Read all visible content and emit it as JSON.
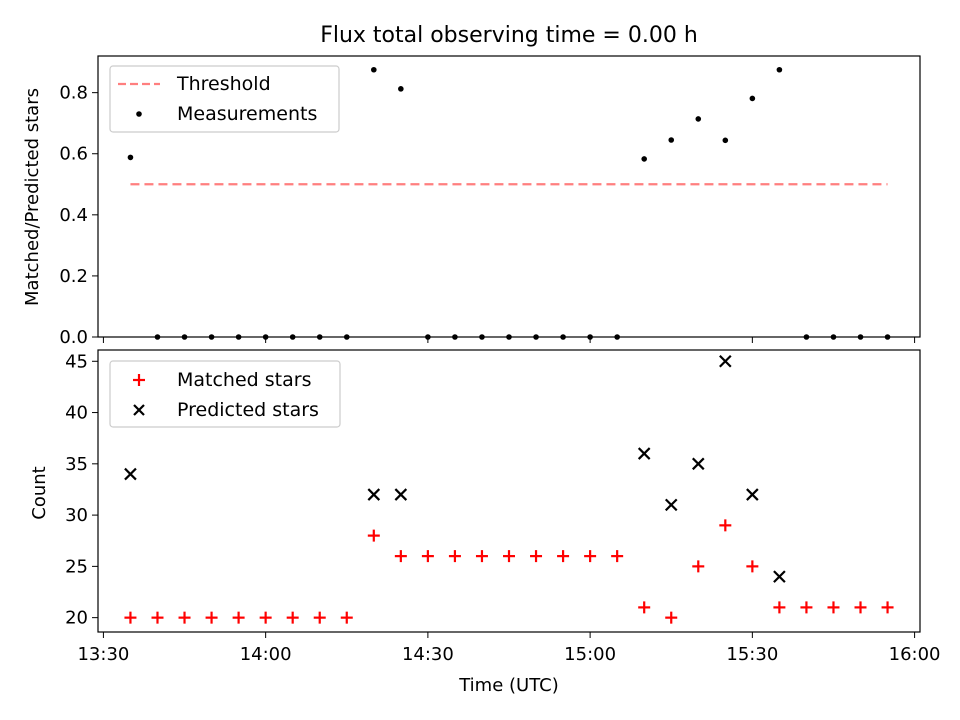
{
  "chart_data": [
    {
      "type": "scatter",
      "title": "Flux total observing time = 0.00 h",
      "xlabel": "",
      "ylabel": "Matched/Predicted stars",
      "xlim": [
        "13:29",
        "16:01"
      ],
      "ylim": [
        0,
        0.92
      ],
      "yticks": [
        0.0,
        0.2,
        0.4,
        0.6,
        0.8
      ],
      "ytick_labels": [
        "0.0",
        "0.2",
        "0.4",
        "0.6",
        "0.8"
      ],
      "xticks": [
        "13:30",
        "14:00",
        "14:30",
        "15:00",
        "15:30",
        "16:00"
      ],
      "xtick_labels": [],
      "grid": false,
      "legend_position": "upper-left",
      "series": [
        {
          "name": "Threshold",
          "kind": "line",
          "style": "dashed",
          "color": "#ff7f7f",
          "x": [
            "13:35",
            "15:55"
          ],
          "y": [
            0.5,
            0.5
          ]
        },
        {
          "name": "Measurements",
          "kind": "points",
          "marker": "dot",
          "color": "#000000",
          "x": [
            "13:35",
            "13:40",
            "13:45",
            "13:50",
            "13:55",
            "14:00",
            "14:05",
            "14:10",
            "14:15",
            "14:20",
            "14:25",
            "14:30",
            "14:35",
            "14:40",
            "14:45",
            "14:50",
            "14:55",
            "15:00",
            "15:05",
            "15:10",
            "15:15",
            "15:20",
            "15:25",
            "15:30",
            "15:35",
            "15:40",
            "15:45",
            "15:50",
            "15:55"
          ],
          "y": [
            0.588,
            0,
            0,
            0,
            0,
            0,
            0,
            0,
            0,
            0.875,
            0.8125,
            0,
            0,
            0,
            0,
            0,
            0,
            0,
            0,
            0.583,
            0.645,
            0.714,
            0.644,
            0.781,
            0.875,
            0,
            0,
            0,
            0
          ]
        }
      ]
    },
    {
      "type": "scatter",
      "title": "",
      "xlabel": "Time (UTC)",
      "ylabel": "Count",
      "xlim": [
        "13:29",
        "16:01"
      ],
      "ylim": [
        18.6,
        46.1
      ],
      "yticks": [
        20,
        25,
        30,
        35,
        40,
        45
      ],
      "ytick_labels": [
        "20",
        "25",
        "30",
        "35",
        "40",
        "45"
      ],
      "xticks": [
        "13:30",
        "14:00",
        "14:30",
        "15:00",
        "15:30",
        "16:00"
      ],
      "xtick_labels": [
        "13:30",
        "14:00",
        "14:30",
        "15:00",
        "15:30",
        "16:00"
      ],
      "grid": false,
      "legend_position": "upper-left",
      "series": [
        {
          "name": "Matched stars",
          "kind": "points",
          "marker": "plus",
          "color": "#ff0000",
          "x": [
            "13:35",
            "13:40",
            "13:45",
            "13:50",
            "13:55",
            "14:00",
            "14:05",
            "14:10",
            "14:15",
            "14:20",
            "14:25",
            "14:30",
            "14:35",
            "14:40",
            "14:45",
            "14:50",
            "14:55",
            "15:00",
            "15:05",
            "15:10",
            "15:15",
            "15:20",
            "15:25",
            "15:30",
            "15:35",
            "15:40",
            "15:45",
            "15:50",
            "15:55"
          ],
          "y": [
            20,
            20,
            20,
            20,
            20,
            20,
            20,
            20,
            20,
            28,
            26,
            26,
            26,
            26,
            26,
            26,
            26,
            26,
            26,
            21,
            20,
            25,
            29,
            25,
            21,
            21,
            21,
            21,
            21
          ]
        },
        {
          "name": "Predicted stars",
          "kind": "points",
          "marker": "x",
          "color": "#000000",
          "x": [
            "13:35",
            "14:20",
            "14:25",
            "15:10",
            "15:15",
            "15:20",
            "15:25",
            "15:30",
            "15:35"
          ],
          "y": [
            34,
            32,
            32,
            36,
            31,
            35,
            45,
            32,
            24
          ]
        }
      ]
    }
  ]
}
